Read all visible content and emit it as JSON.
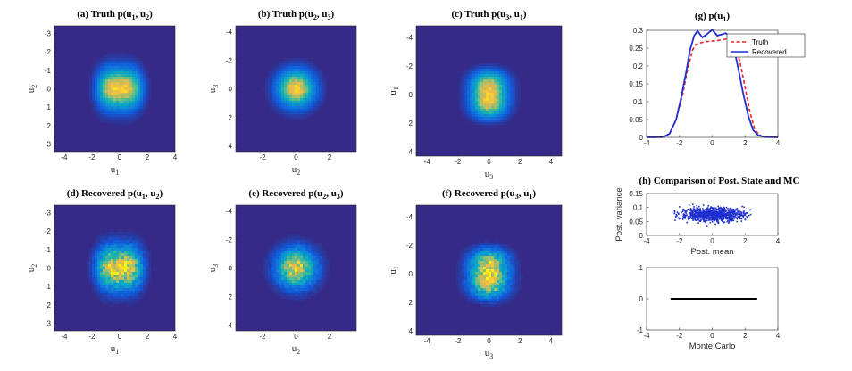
{
  "chart_data": [
    {
      "id": "a",
      "type": "heatmap",
      "title_pre": "(a)  Truth p(u",
      "sub1": "1",
      "mid": ", u",
      "sub2": "2",
      "post": ")",
      "xlabel_main": "u",
      "xlabel_sub": "1",
      "ylabel_main": "u",
      "ylabel_sub": "2",
      "xlim": [
        -4.7,
        4.0
      ],
      "ylim": [
        -3.4,
        3.4
      ],
      "y_reversed": true,
      "xticks": [
        -4,
        -2,
        0,
        2,
        4
      ],
      "yticks": [
        -3,
        -2,
        -1,
        0,
        1,
        2,
        3
      ],
      "density": {
        "cx": 0,
        "cy": 0,
        "sx": 1.45,
        "sy": 0.95,
        "shape": "box",
        "noise": 0.1
      }
    },
    {
      "id": "b",
      "type": "heatmap",
      "title_pre": "(b)  Truth p(u",
      "sub1": "2",
      "mid": ", u",
      "sub2": "3",
      "post": ")",
      "xlabel_main": "u",
      "xlabel_sub": "2",
      "ylabel_main": "u",
      "ylabel_sub": "3",
      "xlim": [
        -3.6,
        3.6
      ],
      "ylim": [
        -4.4,
        4.4
      ],
      "y_reversed": true,
      "xticks": [
        -2,
        0,
        2
      ],
      "yticks": [
        -4,
        -2,
        0,
        2,
        4
      ],
      "density": {
        "cx": 0,
        "cy": 0,
        "sx": 0.95,
        "sy": 1.1,
        "shape": "gauss",
        "noise": 0.1
      }
    },
    {
      "id": "c",
      "type": "heatmap",
      "title_pre": "(c)  Truth p(u",
      "sub1": "3",
      "mid": ", u",
      "sub2": "1",
      "post": ")",
      "xlabel_main": "u",
      "xlabel_sub": "3",
      "ylabel_main": "u",
      "ylabel_sub": "1",
      "xlim": [
        -4.7,
        4.7
      ],
      "ylim": [
        -4.8,
        4.3
      ],
      "y_reversed": true,
      "xticks": [
        -4,
        -2,
        0,
        2,
        4
      ],
      "yticks": [
        -4,
        -2,
        0,
        2,
        4
      ],
      "density": {
        "cx": 0,
        "cy": 0,
        "sx": 1.0,
        "sy": 1.45,
        "shape": "boxv",
        "noise": 0.1
      }
    },
    {
      "id": "d",
      "type": "heatmap",
      "title_pre": "(d)  Recovered p(u",
      "sub1": "1",
      "mid": ", u",
      "sub2": "2",
      "post": ")",
      "xlabel_main": "u",
      "xlabel_sub": "1",
      "ylabel_main": "u",
      "ylabel_sub": "2",
      "xlim": [
        -4.7,
        4.0
      ],
      "ylim": [
        -3.4,
        3.4
      ],
      "y_reversed": true,
      "xticks": [
        -4,
        -2,
        0,
        2,
        4
      ],
      "yticks": [
        -3,
        -2,
        -1,
        0,
        1,
        2,
        3
      ],
      "density": {
        "cx": 0,
        "cy": 0,
        "sx": 1.5,
        "sy": 1.0,
        "shape": "box",
        "noise": 0.28
      }
    },
    {
      "id": "e",
      "type": "heatmap",
      "title_pre": "(e)  Recovered p(u",
      "sub1": "2",
      "mid": ", u",
      "sub2": "3",
      "post": ")",
      "xlabel_main": "u",
      "xlabel_sub": "2",
      "ylabel_main": "u",
      "ylabel_sub": "3",
      "xlim": [
        -3.6,
        3.6
      ],
      "ylim": [
        -4.4,
        4.4
      ],
      "y_reversed": true,
      "xticks": [
        -2,
        0,
        2
      ],
      "yticks": [
        -4,
        -2,
        0,
        2,
        4
      ],
      "density": {
        "cx": 0,
        "cy": 0,
        "sx": 1.0,
        "sy": 1.15,
        "shape": "gauss",
        "noise": 0.28
      }
    },
    {
      "id": "f",
      "type": "heatmap",
      "title_pre": "(f)  Recovered p(u",
      "sub1": "3",
      "mid": ", u",
      "sub2": "1",
      "post": ")",
      "xlabel_main": "u",
      "xlabel_sub": "3",
      "ylabel_main": "u",
      "ylabel_sub": "1",
      "xlim": [
        -4.7,
        4.7
      ],
      "ylim": [
        -4.8,
        4.3
      ],
      "y_reversed": true,
      "xticks": [
        -4,
        -2,
        0,
        2,
        4
      ],
      "yticks": [
        -4,
        -2,
        0,
        2,
        4
      ],
      "density": {
        "cx": 0,
        "cy": 0,
        "sx": 1.05,
        "sy": 1.5,
        "shape": "boxv",
        "noise": 0.28
      }
    },
    {
      "id": "g",
      "type": "line",
      "title_pre": "(g)  p(u",
      "sub1": "1",
      "post": ")",
      "xlim": [
        -4,
        4
      ],
      "ylim": [
        0,
        0.3
      ],
      "xticks": [
        -4,
        -2,
        0,
        2,
        4
      ],
      "yticks": [
        0,
        0.05,
        0.1,
        0.15,
        0.2,
        0.25,
        0.3
      ],
      "ytick_labels": [
        "0",
        "0.05",
        "0.1",
        "0.15",
        "0.2",
        "0.25",
        "0.3"
      ],
      "legend_position": "top-right",
      "series": [
        {
          "name": "Truth",
          "color": "#e8262a",
          "dash": true,
          "x": [
            -4,
            -3,
            -2.6,
            -2.2,
            -1.8,
            -1.5,
            -1.2,
            -1.0,
            -0.7,
            -0.4,
            0,
            0.4,
            0.8,
            1.1,
            1.4,
            1.7,
            2.0,
            2.3,
            2.6,
            3.0,
            4
          ],
          "y": [
            0,
            0,
            0.01,
            0.05,
            0.12,
            0.19,
            0.245,
            0.26,
            0.265,
            0.268,
            0.27,
            0.272,
            0.275,
            0.278,
            0.26,
            0.21,
            0.14,
            0.07,
            0.02,
            0.003,
            0
          ]
        },
        {
          "name": "Recovered",
          "color": "#1f2fcf",
          "dash": false,
          "x": [
            -4,
            -3,
            -2.6,
            -2.2,
            -1.9,
            -1.6,
            -1.35,
            -1.1,
            -0.9,
            -0.6,
            -0.3,
            0,
            0.3,
            0.55,
            0.8,
            1.0,
            1.3,
            1.6,
            1.9,
            2.2,
            2.5,
            2.8,
            3.2,
            4
          ],
          "y": [
            0,
            0.001,
            0.01,
            0.05,
            0.11,
            0.18,
            0.245,
            0.285,
            0.298,
            0.28,
            0.29,
            0.302,
            0.285,
            0.288,
            0.292,
            0.286,
            0.255,
            0.19,
            0.12,
            0.06,
            0.02,
            0.006,
            0.001,
            0
          ]
        }
      ]
    },
    {
      "id": "h1",
      "type": "scatter",
      "title": "(h)  Comparison of Post. State and MC",
      "xlabel": "Post. mean",
      "ylabel": "Post. variance",
      "xlim": [
        -4,
        4
      ],
      "ylim": [
        0,
        0.15
      ],
      "xticks": [
        -4,
        -2,
        0,
        2,
        4
      ],
      "yticks": [
        0,
        0.05,
        0.1,
        0.15
      ],
      "ytick_labels": [
        "0",
        "0.05",
        "0.1",
        "0.15"
      ],
      "color": "#1f2fcf",
      "cloud": {
        "x_range": [
          -2.4,
          2.4
        ],
        "y_center": 0.075,
        "y_spread": 0.012,
        "count": 900
      }
    },
    {
      "id": "h2",
      "type": "scatter",
      "xlabel": "Monte Carlo",
      "xlim": [
        -4,
        4
      ],
      "ylim": [
        -1,
        1
      ],
      "xticks": [
        -4,
        -2,
        0,
        2,
        4
      ],
      "yticks": [
        -1,
        0,
        1
      ],
      "ytick_labels": [
        "-1",
        "0",
        "1"
      ],
      "color": "#000000",
      "cloud": {
        "x_range": [
          -2.5,
          2.7
        ],
        "y_center": 0,
        "y_spread": 0,
        "count": 260
      }
    }
  ]
}
